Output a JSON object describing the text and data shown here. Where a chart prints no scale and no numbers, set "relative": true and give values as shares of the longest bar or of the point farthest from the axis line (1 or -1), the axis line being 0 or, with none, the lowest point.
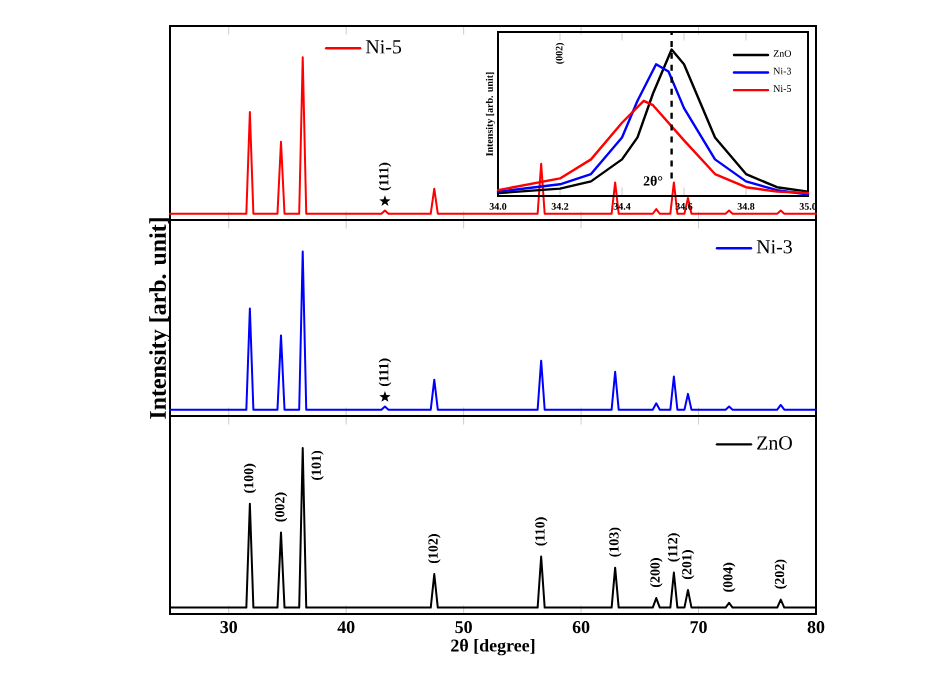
{
  "chart_data": [
    {
      "type": "line",
      "relative": true,
      "xlim": [
        25,
        80
      ],
      "xticks": [
        30,
        40,
        50,
        60,
        70,
        80
      ],
      "tick_labels": false,
      "legend": "top left",
      "series": [
        {
          "name": "Ni-5",
          "color": "#ff0000",
          "x": [
            25,
            31.5,
            31.8,
            32.1,
            34.15,
            34.45,
            34.75,
            36.0,
            36.3,
            36.6,
            43.0,
            43.3,
            43.6,
            47.2,
            47.5,
            47.8,
            56.3,
            56.6,
            56.9,
            62.6,
            62.9,
            63.2,
            66.1,
            66.4,
            66.7,
            67.6,
            67.9,
            68.2,
            68.8,
            69.1,
            69.4,
            72.3,
            72.6,
            72.9,
            76.7,
            77.0,
            77.3,
            80
          ],
          "values": [
            0,
            0,
            0.65,
            0,
            0,
            0.46,
            0,
            0,
            1,
            0,
            0,
            0.02,
            0,
            0,
            0.16,
            0,
            0,
            0.32,
            0,
            0,
            0.2,
            0,
            0,
            0.03,
            0,
            0,
            0.2,
            0,
            0,
            0.1,
            0,
            0,
            0.02,
            0,
            0,
            0.02,
            0,
            0
          ]
        },
        {
          "type": "scatter",
          "marker": "star",
          "color": "#000000",
          "x": [
            43.3
          ],
          "values": [
            0.08
          ]
        }
      ],
      "annotations": [
        {
          "text": "(111)",
          "x": 43.3,
          "y": 0.08
        }
      ]
    },
    {
      "type": "line",
      "relative": true,
      "xlim": [
        25,
        80
      ],
      "xticks": [
        30,
        40,
        50,
        60,
        70,
        80
      ],
      "tick_labels": false,
      "legend": "top right",
      "ylabel": "Intensity [arb. unit]",
      "series": [
        {
          "name": "Ni-3",
          "color": "#0000ff",
          "x": [
            25,
            31.5,
            31.8,
            32.1,
            34.15,
            34.45,
            34.75,
            36.0,
            36.3,
            36.6,
            43.0,
            43.3,
            43.6,
            47.2,
            47.5,
            47.8,
            56.3,
            56.6,
            56.9,
            62.6,
            62.9,
            63.2,
            66.1,
            66.4,
            66.7,
            67.6,
            67.9,
            68.2,
            68.8,
            69.1,
            69.4,
            72.3,
            72.6,
            72.9,
            76.7,
            77.0,
            77.3,
            80
          ],
          "values": [
            0,
            0,
            0.64,
            0,
            0,
            0.47,
            0,
            0,
            1,
            0,
            0,
            0.02,
            0,
            0,
            0.19,
            0,
            0,
            0.31,
            0,
            0,
            0.24,
            0,
            0,
            0.04,
            0,
            0,
            0.21,
            0,
            0,
            0.1,
            0,
            0,
            0.02,
            0,
            0,
            0.03,
            0,
            0
          ]
        },
        {
          "type": "scatter",
          "marker": "star",
          "color": "#000000",
          "x": [
            43.3
          ],
          "values": [
            0.08
          ]
        }
      ],
      "annotations": [
        {
          "text": "(111)",
          "x": 43.3,
          "y": 0.08
        }
      ]
    },
    {
      "type": "line",
      "relative": true,
      "xlim": [
        25,
        80
      ],
      "xticks": [
        30,
        40,
        50,
        60,
        70,
        80
      ],
      "legend": "top right",
      "xlabel": "2θ [degree]",
      "series": [
        {
          "name": "ZnO",
          "color": "#000000",
          "x": [
            25,
            31.5,
            31.8,
            32.1,
            34.15,
            34.45,
            34.75,
            36.0,
            36.3,
            36.6,
            47.2,
            47.5,
            47.8,
            56.3,
            56.6,
            56.9,
            62.6,
            62.9,
            63.2,
            66.1,
            66.4,
            66.7,
            67.6,
            67.9,
            68.2,
            68.8,
            69.1,
            69.4,
            72.3,
            72.6,
            72.9,
            76.7,
            77.0,
            77.3,
            80
          ],
          "values": [
            0,
            0,
            0.65,
            0,
            0,
            0.47,
            0,
            0,
            1,
            0,
            0,
            0.21,
            0,
            0,
            0.32,
            0,
            0,
            0.25,
            0,
            0,
            0.06,
            0,
            0,
            0.22,
            0,
            0,
            0.11,
            0,
            0,
            0.03,
            0,
            0,
            0.05,
            0,
            0
          ]
        }
      ],
      "annotations": [
        {
          "text": "(100)",
          "x": 31.8,
          "y": 0.65
        },
        {
          "text": "(002)",
          "x": 34.45,
          "y": 0.47
        },
        {
          "text": "(101)",
          "x": 36.3,
          "y": 1
        },
        {
          "text": "(102)",
          "x": 47.5,
          "y": 0.21
        },
        {
          "text": "(110)",
          "x": 56.6,
          "y": 0.32
        },
        {
          "text": "(103)",
          "x": 62.9,
          "y": 0.25
        },
        {
          "text": "(200)",
          "x": 66.4,
          "y": 0.06
        },
        {
          "text": "(112)",
          "x": 67.9,
          "y": 0.22
        },
        {
          "text": "(201)",
          "x": 69.1,
          "y": 0.11
        },
        {
          "text": "(004)",
          "x": 72.6,
          "y": 0.03
        },
        {
          "text": "(202)",
          "x": 77.0,
          "y": 0.05
        }
      ]
    },
    {
      "type": "line",
      "relative": true,
      "xlim": [
        34.0,
        35.0
      ],
      "xticks": [
        {
          "value": 34.0,
          "label": "34.0"
        },
        34.2,
        34.4,
        34.6,
        34.8,
        {
          "value": 35.0,
          "label": "35.0"
        }
      ],
      "legend": "top right",
      "xlabel": "2θ°",
      "ylabel": "Intensity [arb. unit]",
      "ref_lines": [
        {
          "axis": "x",
          "value": 34.56,
          "line_style": "dashed",
          "color": "#000000"
        }
      ],
      "annotations": [
        "(002)"
      ],
      "series": [
        {
          "name": "ZnO",
          "color": "#000000",
          "x": [
            34.0,
            34.2,
            34.3,
            34.4,
            34.45,
            34.5,
            34.56,
            34.6,
            34.65,
            34.7,
            34.8,
            34.9,
            35.0
          ],
          "values": [
            0.02,
            0.05,
            0.1,
            0.25,
            0.4,
            0.7,
            1,
            0.9,
            0.65,
            0.4,
            0.15,
            0.06,
            0.03
          ]
        },
        {
          "name": "Ni-3",
          "color": "#0000ff",
          "x": [
            34.0,
            34.2,
            34.3,
            34.4,
            34.45,
            34.51,
            34.55,
            34.6,
            34.7,
            34.8,
            34.9,
            35.0
          ],
          "values": [
            0.03,
            0.08,
            0.15,
            0.4,
            0.65,
            0.9,
            0.85,
            0.6,
            0.25,
            0.1,
            0.04,
            0.01
          ]
        },
        {
          "name": "Ni-5",
          "color": "#ff0000",
          "x": [
            34.0,
            34.2,
            34.3,
            34.4,
            34.47,
            34.5,
            34.6,
            34.7,
            34.8,
            34.9,
            35.0
          ],
          "values": [
            0.04,
            0.12,
            0.25,
            0.5,
            0.65,
            0.62,
            0.38,
            0.15,
            0.06,
            0.03,
            0.02
          ]
        }
      ]
    }
  ]
}
